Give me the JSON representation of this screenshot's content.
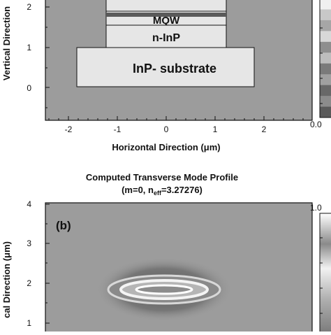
{
  "figure": {
    "colors": {
      "background": "#ffffff",
      "plot_gray": "#9c9c9c",
      "plot_border": "#111111",
      "layer_fill": "#e6e6e6",
      "mqw_stripe": "#5a5a5a",
      "text": "#111111"
    },
    "top_panel": {
      "ylabel": "Vertical Direction",
      "xlabel": "Horizontal Direction (μm)",
      "y_ticks": [
        "2",
        "1",
        "0"
      ],
      "x_ticks": [
        "-2",
        "-1",
        "0",
        "1",
        "2"
      ],
      "layers": {
        "mqw": "MQW",
        "n_inp": "n-InP",
        "substrate": "InP- substrate"
      },
      "colorbar_tick": "0.0",
      "colorbar_shades": [
        "#f0f0f0",
        "#c8c8c8",
        "#a6a6a6",
        "#d8d8d8",
        "#8e8e8e",
        "#bdbdbd",
        "#7a7a7a",
        "#a0a0a0",
        "#686868",
        "#8c8c8c",
        "#5a5a5a"
      ]
    },
    "bottom_panel": {
      "title_line1": "Computed Transverse Mode Profile",
      "title_line2_prefix": "(m=0, n",
      "title_line2_sub": "eff",
      "title_line2_suffix": "=3.27276)",
      "panel_label": "(b)",
      "ylabel": "cal Direction (μm)",
      "y_ticks": [
        "4",
        "3",
        "2",
        "1"
      ],
      "colorbar_tick": "1.0"
    }
  }
}
